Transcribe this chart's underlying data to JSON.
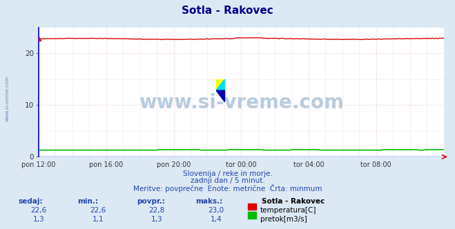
{
  "title": "Sotla - Rakovec",
  "bg_color": "#dce9f5",
  "plot_bg_color": "#ffffff",
  "x_labels": [
    "pon 12:00",
    "pon 16:00",
    "pon 20:00",
    "tor 00:00",
    "tor 04:00",
    "tor 08:00"
  ],
  "x_ticks_pos": [
    0,
    48,
    96,
    144,
    192,
    240
  ],
  "n_points": 289,
  "temp_value": 22.8,
  "temp_min": 22.6,
  "temp_max": 23.0,
  "temp_color": "#dd0000",
  "flow_value": 1.3,
  "flow_min": 1.1,
  "flow_max": 1.4,
  "flow_color": "#00bb00",
  "ylim_min": 0,
  "ylim_max": 25,
  "yticks": [
    0,
    10,
    20
  ],
  "subtitle1": "Slovenija / reke in morje.",
  "subtitle2": "zadnji dan / 5 minut.",
  "subtitle3": "Meritve: povprečne  Enote: metrične  Črta: minmum",
  "watermark": "www.si-vreme.com",
  "watermark_color": "#b8ccdf",
  "left_label": "www.si-vreme.com",
  "stat_headers": [
    "sedaj:",
    "min.:",
    "povpr.:",
    "maks.:"
  ],
  "stat_temp": [
    "22,6",
    "22,6",
    "22,8",
    "23,0"
  ],
  "stat_flow": [
    "1,3",
    "1,1",
    "1,3",
    "1,4"
  ],
  "legend_station": "Sotla - Rakovec",
  "legend_temp": "temperatura[C]",
  "legend_flow": "pretok[m3/s]",
  "title_color": "#000088",
  "text_color": "#2244aa",
  "stat_color": "#2244aa",
  "spine_color": "#0000dd",
  "grid_color": "#e8b8b8"
}
